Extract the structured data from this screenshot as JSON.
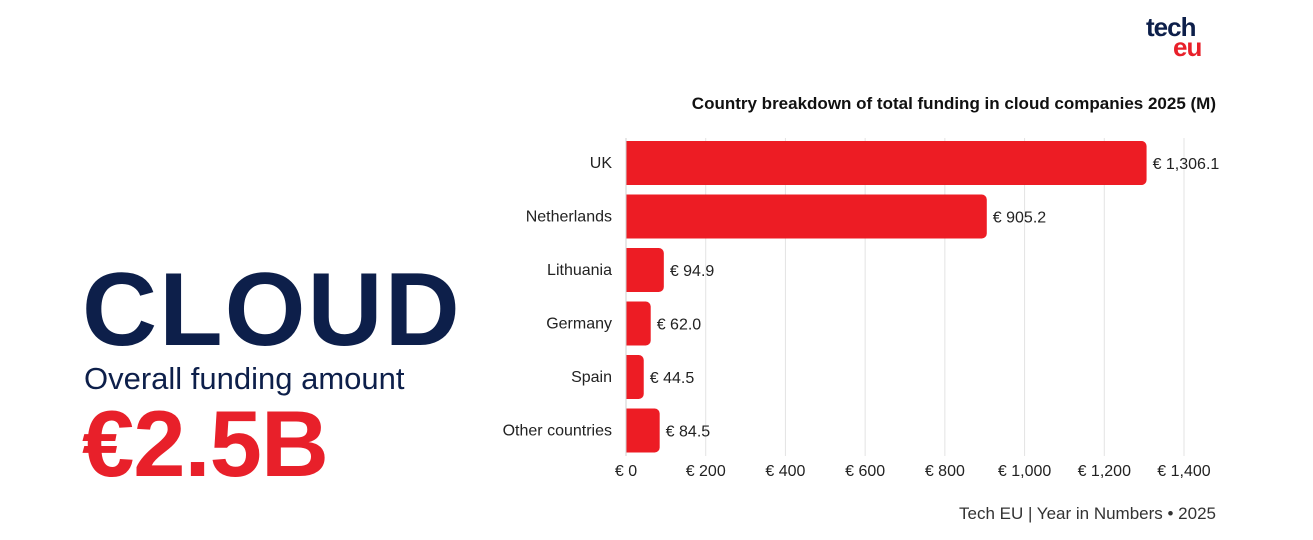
{
  "logo": {
    "line1": "tech",
    "line2": "eu"
  },
  "hero": {
    "title": "CLOUD",
    "subtitle": "Overall funding amount",
    "amount": "€2.5B"
  },
  "chart_data": {
    "type": "bar",
    "orientation": "horizontal",
    "title": "Country breakdown of total funding in cloud companies 2025 (M)",
    "categories": [
      "UK",
      "Netherlands",
      "Lithuania",
      "Germany",
      "Spain",
      "Other countries"
    ],
    "values": [
      1306.1,
      905.2,
      94.9,
      62.0,
      44.5,
      84.5
    ],
    "data_labels": [
      "€ 1,306.1",
      "€ 905.2",
      "€ 94.9",
      "€ 62.0",
      "€ 44.5",
      "€ 84.5"
    ],
    "x_ticks": [
      0,
      200,
      400,
      600,
      800,
      1000,
      1200,
      1400
    ],
    "x_tick_labels": [
      "€ 0",
      "€ 200",
      "€ 400",
      "€ 600",
      "€ 800",
      "€ 1,000",
      "€ 1,200",
      "€ 1,400"
    ],
    "xlim": [
      0,
      1400
    ],
    "grid": true,
    "bar_color": "#ed1c24",
    "xlabel": "",
    "ylabel": ""
  },
  "footer": "Tech EU | Year in Numbers • 2025",
  "colors": {
    "navy": "#0d1f4a",
    "red": "#e8202a",
    "grid": "#e3e3e3"
  }
}
